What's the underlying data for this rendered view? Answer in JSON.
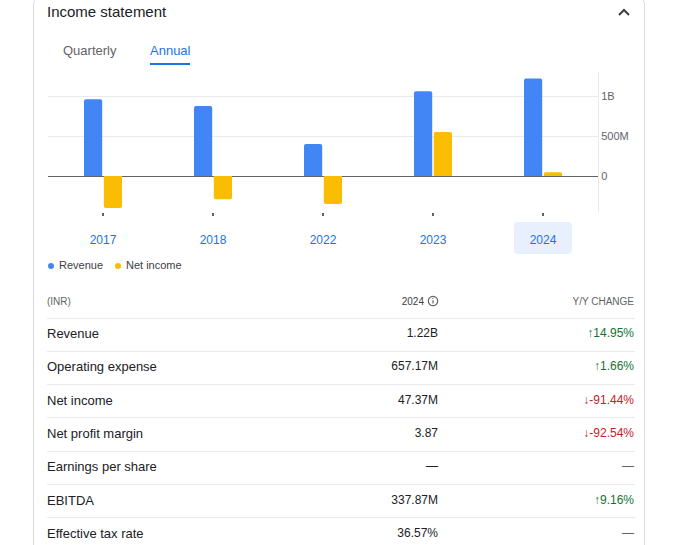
{
  "header": {
    "title": "Income statement",
    "tabs": [
      "Quarterly",
      "Annual"
    ],
    "active_tab": "Annual",
    "selected": "2024"
  },
  "chart_data": {
    "type": "bar",
    "categories": [
      "2017",
      "2018",
      "2022",
      "2023",
      "2024"
    ],
    "series": [
      {
        "name": "Revenue",
        "color": "#4285f4",
        "values": [
          960000000,
          875000000,
          400000000,
          1060000000,
          1220000000
        ]
      },
      {
        "name": "Net income",
        "color": "#fbbc04",
        "values": [
          -400000000,
          -290000000,
          -350000000,
          550000000,
          47370000
        ]
      }
    ],
    "ylim": [
      -450000000,
      1300000000
    ],
    "yticks": [
      0,
      {
        "value": 500000000,
        "label": "500M"
      },
      {
        "value": 1000000000,
        "label": "1B"
      }
    ],
    "grid": true,
    "legend": "bottom-left"
  },
  "table": {
    "columns": [
      "(INR)",
      "2024",
      "Y/Y CHANGE"
    ],
    "rows": [
      [
        "Revenue",
        "1.22B",
        "↑14.95%"
      ],
      [
        "Operating expense",
        "657.17M",
        "↑1.66%"
      ],
      [
        "Net income",
        "47.37M",
        "↓-91.44%"
      ],
      [
        "Net profit margin",
        "3.87",
        "↓-92.54%"
      ],
      [
        "Earnings per share",
        "—",
        "—"
      ],
      [
        "EBITDA",
        "337.87M",
        "↑9.16%"
      ],
      [
        "Effective tax rate",
        "36.57%",
        "—"
      ]
    ]
  }
}
